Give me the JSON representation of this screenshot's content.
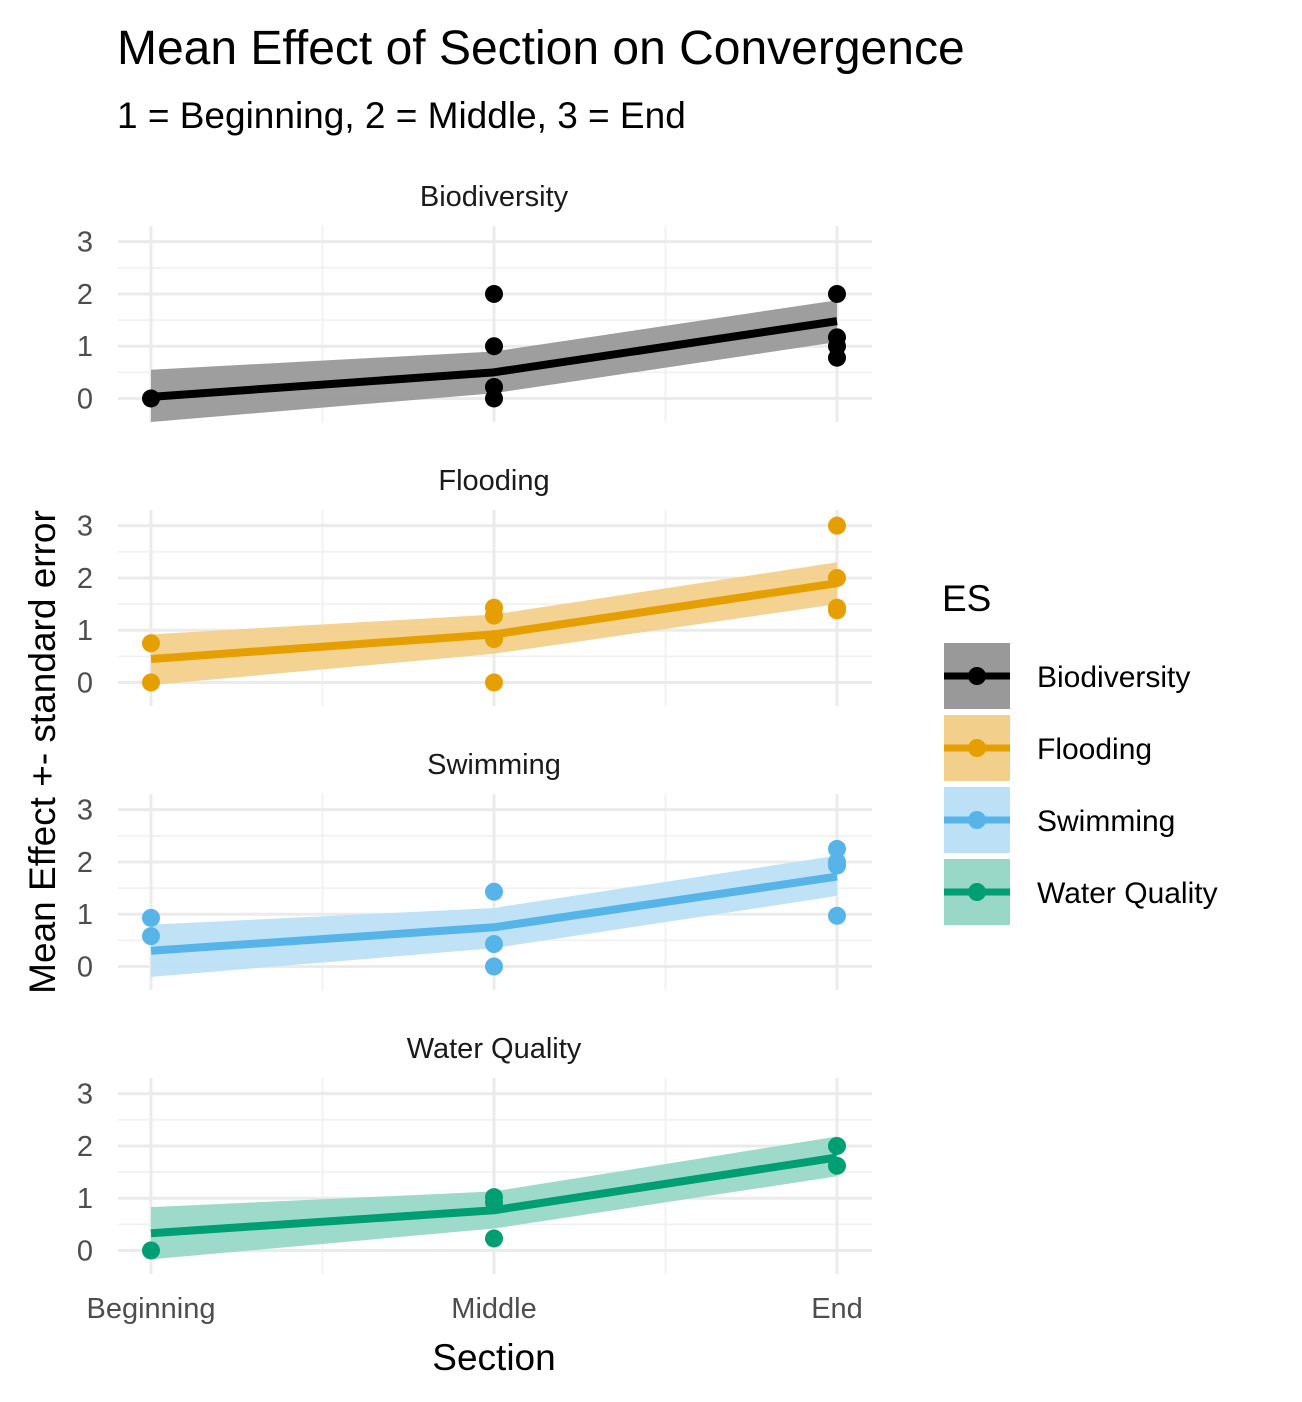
{
  "chart_data": {
    "type": "line",
    "title": "Mean Effect of Section on Convergence",
    "subtitle": "1 = Beginning, 2 = Middle, 3 = End",
    "xlabel": "Section",
    "ylabel": "Mean Effect +- standard error",
    "categories": [
      "Beginning",
      "Middle",
      "End"
    ],
    "y_ticks": [
      0,
      1,
      2,
      3
    ],
    "ylim": [
      -0.45,
      3.3
    ],
    "grid": true,
    "legend": {
      "title": "ES",
      "position": "right"
    },
    "facets": [
      {
        "name": "Biodiversity",
        "color": "#000000",
        "ribbon_color": "#999999",
        "mean": [
          0.03,
          0.5,
          1.48
        ],
        "lower": [
          -0.45,
          0.1,
          1.08
        ],
        "upper": [
          0.55,
          0.9,
          1.88
        ],
        "points": [
          [
            1,
            0
          ],
          [
            2,
            2
          ],
          [
            2,
            1
          ],
          [
            2,
            0.22
          ],
          [
            2,
            0
          ],
          [
            3,
            2
          ],
          [
            3,
            1.17
          ],
          [
            3,
            1.0
          ],
          [
            3,
            0.78
          ]
        ]
      },
      {
        "name": "Flooding",
        "color": "#E69F00",
        "ribbon_color": "#F2D08C",
        "mean": [
          0.45,
          0.92,
          1.9
        ],
        "lower": [
          -0.05,
          0.55,
          1.5
        ],
        "upper": [
          0.92,
          1.3,
          2.3
        ],
        "points": [
          [
            1,
            0.75
          ],
          [
            1,
            0
          ],
          [
            2,
            1.43
          ],
          [
            2,
            1.28
          ],
          [
            2,
            0.83
          ],
          [
            2,
            0
          ],
          [
            3,
            3
          ],
          [
            3,
            2
          ],
          [
            3,
            1.43
          ],
          [
            3,
            1.38
          ]
        ]
      },
      {
        "name": "Swimming",
        "color": "#56B4E9",
        "ribbon_color": "#BCE0F6",
        "mean": [
          0.3,
          0.75,
          1.72
        ],
        "lower": [
          -0.2,
          0.35,
          1.35
        ],
        "upper": [
          0.8,
          1.12,
          2.12
        ],
        "points": [
          [
            1,
            0.93
          ],
          [
            1,
            0.58
          ],
          [
            2,
            1.43
          ],
          [
            2,
            0.43
          ],
          [
            2,
            0
          ],
          [
            3,
            2.25
          ],
          [
            3,
            2.0
          ],
          [
            3,
            1.93
          ],
          [
            3,
            0.97
          ]
        ]
      },
      {
        "name": "Water Quality",
        "color": "#009E73",
        "ribbon_color": "#99D8C7",
        "mean": [
          0.33,
          0.77,
          1.78
        ],
        "lower": [
          -0.17,
          0.42,
          1.42
        ],
        "upper": [
          0.83,
          1.13,
          2.18
        ],
        "points": [
          [
            1,
            0
          ],
          [
            2,
            1.02
          ],
          [
            2,
            0.92
          ],
          [
            2,
            0.23
          ],
          [
            3,
            2.0
          ],
          [
            3,
            1.62
          ]
        ]
      }
    ]
  }
}
